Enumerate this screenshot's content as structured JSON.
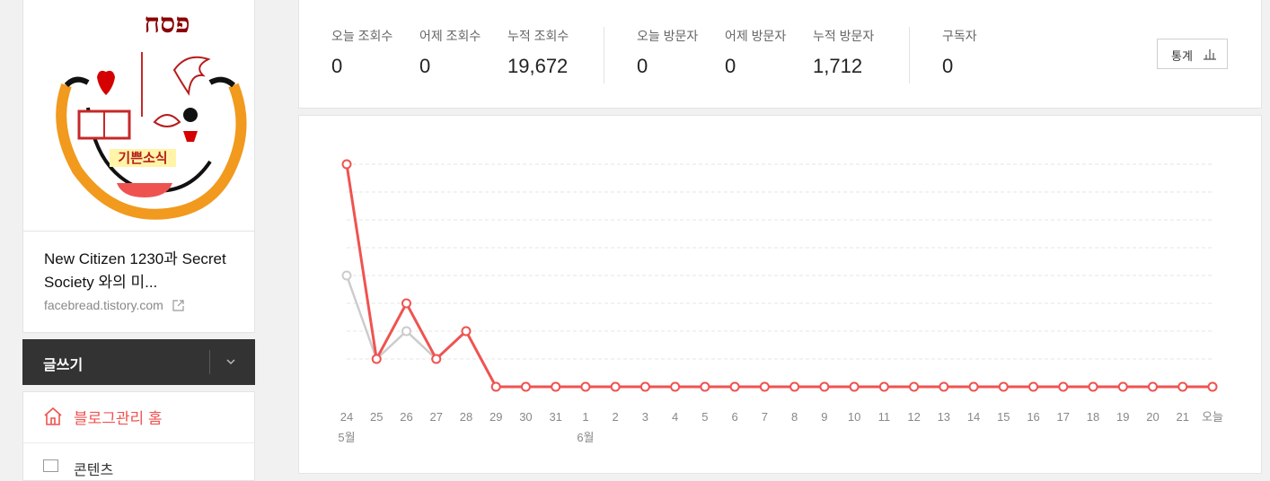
{
  "blog": {
    "logo_text": "기쁜소식",
    "logo_heading": "פסח",
    "title": "New Citizen 1230과 Secret Society 와의 미...",
    "url": "facebread.tistory.com"
  },
  "write": {
    "label": "글쓰기"
  },
  "menu": {
    "home_label": "블로그관리 홈",
    "next_label": "콘텐츠"
  },
  "stats": [
    {
      "label": "오늘 조회수",
      "value": "0"
    },
    {
      "label": "어제 조회수",
      "value": "0"
    },
    {
      "label": "누적 조회수",
      "value": "19,672"
    },
    {
      "label": "오늘 방문자",
      "value": "0"
    },
    {
      "label": "어제 방문자",
      "value": "0"
    },
    {
      "label": "누적 방문자",
      "value": "1,712"
    },
    {
      "label": "구독자",
      "value": "0"
    }
  ],
  "stats_button": {
    "label": "통계"
  },
  "colors": {
    "accent": "#ef5350",
    "secondary_line": "#cccccc"
  },
  "chart_data": {
    "type": "line",
    "x": [
      "24",
      "25",
      "26",
      "27",
      "28",
      "29",
      "30",
      "31",
      "1",
      "2",
      "3",
      "4",
      "5",
      "6",
      "7",
      "8",
      "9",
      "10",
      "11",
      "12",
      "13",
      "14",
      "15",
      "16",
      "17",
      "18",
      "19",
      "20",
      "21",
      "오늘"
    ],
    "month_labels": [
      {
        "index": 0,
        "label": "5월"
      },
      {
        "index": 8,
        "label": "6월"
      }
    ],
    "series": [
      {
        "role": "views",
        "color": "#ef5350",
        "values": [
          8,
          1,
          3,
          1,
          2,
          0,
          0,
          0,
          0,
          0,
          0,
          0,
          0,
          0,
          0,
          0,
          0,
          0,
          0,
          0,
          0,
          0,
          0,
          0,
          0,
          0,
          0,
          0,
          0,
          0
        ]
      },
      {
        "role": "visitors",
        "color": "#cccccc",
        "values": [
          4,
          1,
          2,
          1,
          2,
          0,
          0,
          0,
          0,
          0,
          0,
          0,
          0,
          0,
          0,
          0,
          0,
          0,
          0,
          0,
          0,
          0,
          0,
          0,
          0,
          0,
          0,
          0,
          0,
          0
        ]
      }
    ],
    "ylim": [
      0,
      8
    ],
    "grid": true
  }
}
